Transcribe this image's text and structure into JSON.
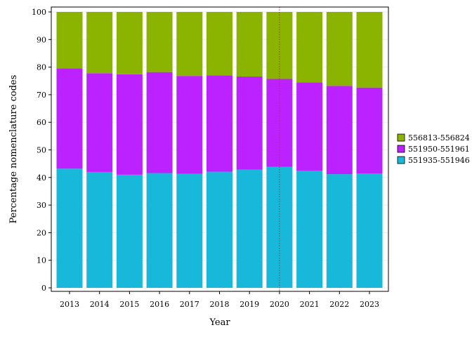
{
  "chart_data": {
    "type": "bar",
    "stacked": true,
    "title": "",
    "xlabel": "Year",
    "ylabel": "Percentage nomenclature codes",
    "categories": [
      "2013",
      "2014",
      "2015",
      "2016",
      "2017",
      "2018",
      "2019",
      "2020",
      "2021",
      "2022",
      "2023"
    ],
    "ylim": [
      0,
      100
    ],
    "yticks": [
      0,
      10,
      20,
      30,
      40,
      50,
      60,
      70,
      80,
      90,
      100
    ],
    "grid": true,
    "legend_position": "right",
    "reference_line": {
      "category": "2020",
      "color": "#b03030",
      "style": "dotted"
    },
    "series": [
      {
        "name": "551935-551946",
        "color": "#17b8d9",
        "values": [
          43.2,
          42.0,
          41.0,
          41.6,
          41.3,
          42.1,
          42.8,
          43.9,
          42.5,
          41.2,
          41.4
        ]
      },
      {
        "name": "551950-551961",
        "color": "#bb22ff",
        "values": [
          36.3,
          35.8,
          36.4,
          36.6,
          35.5,
          34.9,
          33.8,
          31.8,
          32.0,
          32.0,
          31.2
        ]
      },
      {
        "name": "556813-556824",
        "color": "#8ab400",
        "values": [
          20.5,
          22.2,
          22.6,
          21.8,
          23.2,
          23.0,
          23.4,
          24.3,
          25.5,
          26.8,
          27.4
        ]
      }
    ]
  }
}
